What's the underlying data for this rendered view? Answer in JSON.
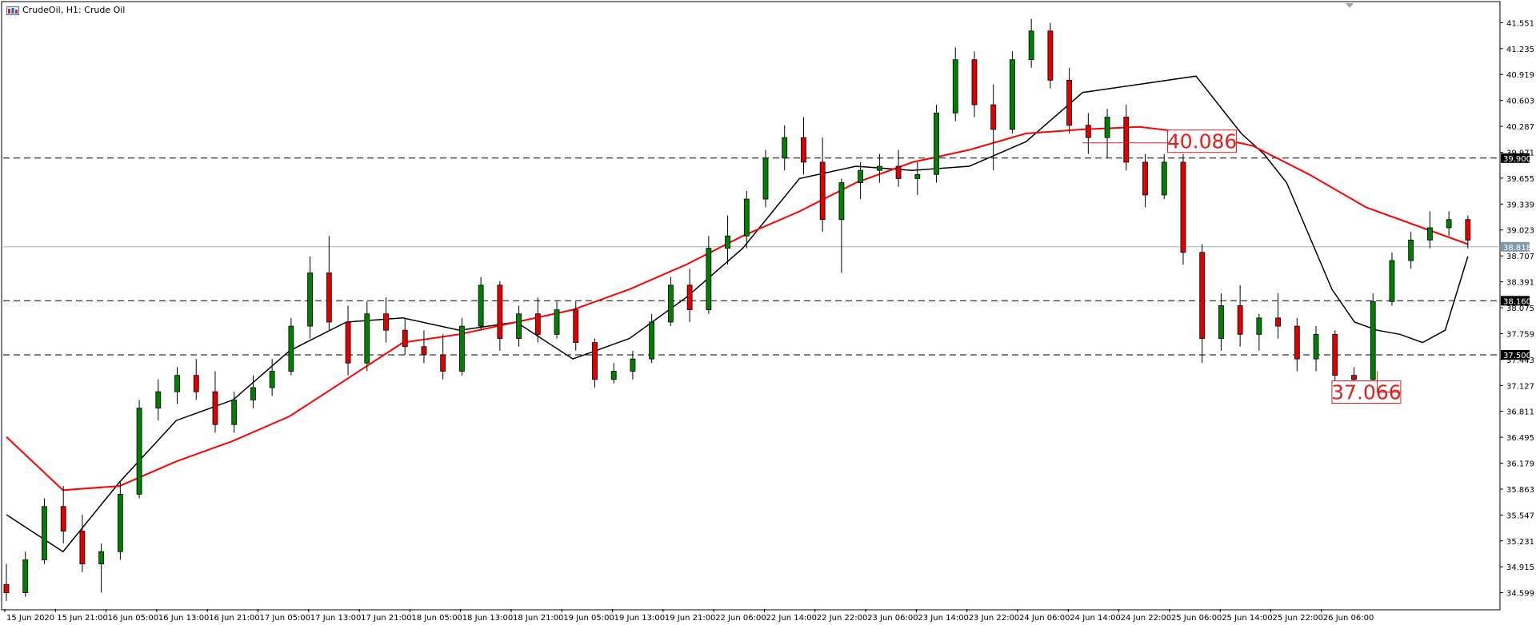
{
  "window": {
    "title": "CrudeOil, H1:  Crude Oil"
  },
  "chart_data": {
    "type": "candlestick",
    "symbol": "CrudeOil",
    "timeframe": "H1",
    "description": "Crude Oil",
    "ylim": [
      34.4,
      41.75
    ],
    "y_ticks": [
      "41.551",
      "41.235",
      "40.919",
      "40.603",
      "40.287",
      "39.971",
      "39.655",
      "39.339",
      "39.023",
      "38.707",
      "38.391",
      "38.075",
      "37.759",
      "37.443",
      "37.127",
      "36.811",
      "36.495",
      "36.179",
      "35.863",
      "35.547",
      "35.231",
      "34.915",
      "34.599"
    ],
    "x_ticks": [
      "15 Jun 2020",
      "15 Jun 21:00",
      "16 Jun 05:00",
      "16 Jun 13:00",
      "16 Jun 21:00",
      "17 Jun 05:00",
      "17 Jun 13:00",
      "17 Jun 21:00",
      "18 Jun 05:00",
      "18 Jun 13:00",
      "18 Jun 21:00",
      "19 Jun 05:00",
      "19 Jun 13:00",
      "19 Jun 21:00",
      "22 Jun 06:00",
      "22 Jun 14:00",
      "22 Jun 22:00",
      "23 Jun 06:00",
      "23 Jun 14:00",
      "23 Jun 22:00",
      "24 Jun 06:00",
      "24 Jun 14:00",
      "24 Jun 22:00",
      "25 Jun 06:00",
      "25 Jun 14:00",
      "25 Jun 22:00",
      "26 Jun 06:00"
    ],
    "current_price": {
      "value": 38.818,
      "label": "38.818",
      "color": "#7f97ad"
    },
    "levels": [
      {
        "value": 39.9,
        "label": "39.900",
        "style": "dashed",
        "color": "#000000"
      },
      {
        "value": 38.16,
        "label": "38.160",
        "style": "dashed",
        "color": "#000000"
      },
      {
        "value": 37.5,
        "label": "37.500",
        "style": "dashed",
        "color": "#000000"
      }
    ],
    "annotations": [
      {
        "text": "40.086",
        "value": 40.086,
        "color": "#e02020"
      },
      {
        "text": "37.066",
        "value": 37.066,
        "color": "#e02020"
      }
    ],
    "colors": {
      "bull": "#008000",
      "bear": "#e00000",
      "wick": "#000000",
      "ma_fast": "#000000",
      "ma_slow": "#ff0000",
      "grid_dash": "#000000"
    },
    "series": [
      {
        "name": "",
        "type": "ma",
        "color": "#000000",
        "x": [
          0,
          10,
          20,
          30,
          40,
          50,
          60,
          70,
          80,
          90,
          100,
          110,
          120,
          130,
          140,
          150,
          160,
          170,
          180,
          190,
          200,
          210,
          218
        ],
        "values": [
          35.55,
          35.1,
          35.95,
          36.7,
          36.95,
          37.55,
          37.9,
          37.95,
          37.8,
          37.9,
          37.45,
          37.7,
          38.2,
          38.8,
          39.65,
          39.8,
          39.75,
          39.8,
          40.1,
          40.7,
          40.8,
          40.9,
          40.2
        ]
      },
      {
        "name": "",
        "type": "ma_fast_tail",
        "color": "#000000",
        "x": [
          218,
          222,
          226,
          230,
          234,
          238,
          242,
          246,
          250,
          254,
          258
        ],
        "values": [
          40.2,
          39.95,
          39.6,
          38.95,
          38.3,
          37.9,
          37.8,
          37.75,
          37.65,
          37.8,
          38.7
        ]
      },
      {
        "name": "",
        "type": "ma",
        "color": "#ff0000",
        "x": [
          0,
          10,
          20,
          30,
          40,
          50,
          60,
          70,
          80,
          90,
          100,
          110,
          120,
          130,
          140,
          150,
          160,
          170,
          180,
          190,
          200,
          210,
          220,
          230,
          240,
          250,
          258
        ],
        "values": [
          36.5,
          35.85,
          35.9,
          36.2,
          36.45,
          36.75,
          37.2,
          37.65,
          37.75,
          37.9,
          38.05,
          38.3,
          38.6,
          38.95,
          39.25,
          39.6,
          39.85,
          40.0,
          40.2,
          40.25,
          40.28,
          40.2,
          40.05,
          39.7,
          39.3,
          39.05,
          38.85
        ]
      },
      {
        "name": "",
        "type": "candles",
        "bars": [
          [
            34.7,
            34.95,
            34.5,
            34.6
          ],
          [
            34.6,
            35.1,
            34.55,
            35.0
          ],
          [
            35.0,
            35.75,
            34.95,
            35.65
          ],
          [
            35.65,
            35.9,
            35.2,
            35.35
          ],
          [
            35.35,
            35.55,
            34.85,
            34.95
          ],
          [
            34.95,
            35.2,
            34.6,
            35.1
          ],
          [
            35.1,
            35.95,
            35.0,
            35.8
          ],
          [
            35.8,
            36.95,
            35.75,
            36.85
          ],
          [
            36.85,
            37.2,
            36.7,
            37.05
          ],
          [
            37.05,
            37.35,
            36.9,
            37.25
          ],
          [
            37.25,
            37.45,
            36.95,
            37.05
          ],
          [
            37.05,
            37.3,
            36.55,
            36.65
          ],
          [
            36.65,
            37.05,
            36.55,
            36.95
          ],
          [
            36.95,
            37.25,
            36.85,
            37.1
          ],
          [
            37.1,
            37.45,
            37.0,
            37.3
          ],
          [
            37.3,
            37.95,
            37.25,
            37.85
          ],
          [
            37.85,
            38.7,
            37.7,
            38.5
          ],
          [
            38.5,
            38.95,
            37.8,
            37.9
          ],
          [
            37.9,
            38.1,
            37.25,
            37.4
          ],
          [
            37.4,
            38.15,
            37.3,
            38.0
          ],
          [
            38.0,
            38.2,
            37.65,
            37.8
          ],
          [
            37.8,
            37.95,
            37.5,
            37.6
          ],
          [
            37.6,
            37.8,
            37.4,
            37.5
          ],
          [
            37.5,
            37.75,
            37.2,
            37.3
          ],
          [
            37.3,
            37.95,
            37.25,
            37.85
          ],
          [
            37.85,
            38.45,
            37.8,
            38.35
          ],
          [
            38.35,
            38.4,
            37.55,
            37.7
          ],
          [
            37.7,
            38.1,
            37.6,
            38.0
          ],
          [
            38.0,
            38.2,
            37.65,
            37.75
          ],
          [
            37.75,
            38.15,
            37.7,
            38.05
          ],
          [
            38.05,
            38.15,
            37.55,
            37.65
          ],
          [
            37.65,
            37.7,
            37.1,
            37.2
          ],
          [
            37.2,
            37.4,
            37.15,
            37.3
          ],
          [
            37.3,
            37.55,
            37.2,
            37.45
          ],
          [
            37.45,
            38.0,
            37.4,
            37.9
          ],
          [
            37.9,
            38.45,
            37.85,
            38.35
          ],
          [
            38.35,
            38.55,
            37.9,
            38.05
          ],
          [
            38.05,
            38.95,
            38.0,
            38.8
          ],
          [
            38.8,
            39.2,
            38.6,
            38.95
          ],
          [
            38.95,
            39.5,
            38.8,
            39.4
          ],
          [
            39.4,
            40.0,
            39.3,
            39.9
          ],
          [
            39.9,
            40.3,
            39.75,
            40.15
          ],
          [
            40.15,
            40.4,
            39.7,
            39.85
          ],
          [
            39.85,
            40.15,
            39.0,
            39.15
          ],
          [
            39.15,
            39.65,
            38.5,
            39.6
          ],
          [
            39.6,
            39.85,
            39.4,
            39.75
          ],
          [
            39.75,
            39.95,
            39.6,
            39.8
          ],
          [
            39.8,
            40.0,
            39.55,
            39.65
          ],
          [
            39.65,
            39.85,
            39.45,
            39.7
          ],
          [
            39.7,
            40.55,
            39.6,
            40.45
          ],
          [
            40.45,
            41.25,
            40.35,
            41.1
          ],
          [
            41.1,
            41.2,
            40.4,
            40.55
          ],
          [
            40.55,
            40.8,
            39.75,
            40.25
          ],
          [
            40.25,
            41.2,
            40.2,
            41.1
          ],
          [
            41.1,
            41.6,
            41.0,
            41.45
          ],
          [
            41.45,
            41.55,
            40.75,
            40.85
          ],
          [
            40.85,
            41.0,
            40.2,
            40.3
          ],
          [
            40.3,
            40.45,
            39.95,
            40.15
          ],
          [
            40.15,
            40.5,
            39.9,
            40.4
          ],
          [
            40.4,
            40.55,
            39.75,
            39.85
          ],
          [
            39.85,
            39.95,
            39.3,
            39.45
          ],
          [
            39.45,
            39.95,
            39.4,
            39.85
          ],
          [
            39.85,
            39.95,
            38.6,
            38.75
          ],
          [
            38.75,
            38.85,
            37.4,
            37.7
          ],
          [
            37.7,
            38.25,
            37.55,
            38.1
          ],
          [
            38.1,
            38.35,
            37.6,
            37.75
          ],
          [
            37.75,
            38.0,
            37.55,
            37.95
          ],
          [
            37.95,
            38.25,
            37.7,
            37.85
          ],
          [
            37.85,
            37.95,
            37.3,
            37.45
          ],
          [
            37.45,
            37.85,
            37.3,
            37.75
          ],
          [
            37.75,
            37.8,
            37.15,
            37.25
          ],
          [
            37.25,
            37.35,
            37.07,
            37.2
          ],
          [
            37.2,
            38.25,
            37.1,
            38.15
          ],
          [
            38.15,
            38.75,
            38.1,
            38.65
          ],
          [
            38.65,
            39.0,
            38.55,
            38.9
          ],
          [
            38.9,
            39.25,
            38.8,
            39.05
          ],
          [
            39.05,
            39.25,
            38.95,
            39.15
          ],
          [
            39.15,
            39.2,
            38.8,
            38.9
          ]
        ]
      }
    ]
  }
}
